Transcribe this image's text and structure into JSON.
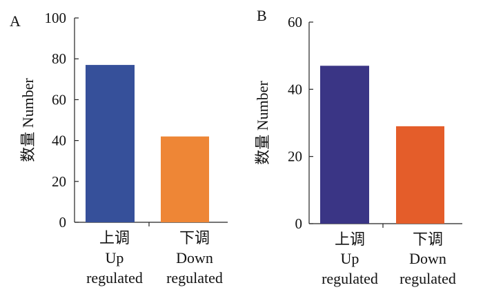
{
  "chart_data": [
    {
      "panel_label": "A",
      "type": "bar",
      "ylabel": "数量 Number",
      "ylim": [
        0,
        100
      ],
      "yticks": [
        0,
        20,
        40,
        60,
        80,
        100
      ],
      "categories": [
        {
          "lines": [
            "上调",
            "Up",
            "regulated"
          ]
        },
        {
          "lines": [
            "下调",
            "Down",
            "regulated"
          ]
        }
      ],
      "values": [
        77,
        42
      ],
      "colors": [
        "#36509a",
        "#ee8636"
      ],
      "grid": false
    },
    {
      "panel_label": "B",
      "type": "bar",
      "ylabel": "数量 Number",
      "ylim": [
        0,
        60
      ],
      "yticks": [
        0,
        20,
        40,
        60
      ],
      "categories": [
        {
          "lines": [
            "上调",
            "Up",
            "regulated"
          ]
        },
        {
          "lines": [
            "下调",
            "Down",
            "regulated"
          ]
        }
      ],
      "values": [
        47,
        29
      ],
      "colors": [
        "#3a3585",
        "#e45d2a"
      ],
      "grid": false
    }
  ]
}
